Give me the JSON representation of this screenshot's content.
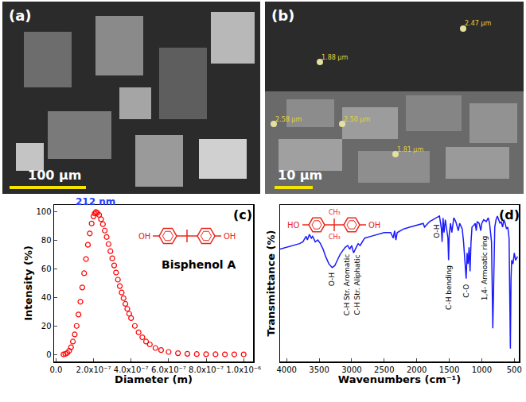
{
  "chart_data": [
    {
      "type": "image",
      "title": "(a)",
      "annotations": [
        {
          "text": "100 μm"
        }
      ]
    },
    {
      "type": "image",
      "title": "(b)",
      "annotations": [
        {
          "text": "10 μm"
        },
        {
          "text": "2.47 μm"
        },
        {
          "text": "1.88 μm"
        },
        {
          "text": "2.58 μm"
        },
        {
          "text": "2.50 μm"
        },
        {
          "text": "1.81 μm"
        }
      ]
    },
    {
      "type": "scatter",
      "title": "(c)",
      "x_label": "Diameter (m)",
      "y_label": "Intensity (%)",
      "x": [
        4e-08,
        5e-08,
        6e-08,
        7e-08,
        8e-08,
        9e-08,
        1e-07,
        1.1e-07,
        1.2e-07,
        1.3e-07,
        1.4e-07,
        1.5e-07,
        1.6e-07,
        1.7e-07,
        1.8e-07,
        1.9e-07,
        2e-07,
        2.06e-07,
        2.12e-07,
        2.2e-07,
        2.3e-07,
        2.4e-07,
        2.5e-07,
        2.6e-07,
        2.7e-07,
        2.8e-07,
        2.9e-07,
        3e-07,
        3.1e-07,
        3.2e-07,
        3.3e-07,
        3.4e-07,
        3.5e-07,
        3.6e-07,
        3.7e-07,
        3.8e-07,
        3.9e-07,
        4e-07,
        4.2e-07,
        4.4e-07,
        4.6e-07,
        4.8e-07,
        5e-07,
        5.3e-07,
        5.6e-07,
        6e-07,
        6.5e-07,
        7e-07,
        7.5e-07,
        8e-07,
        8.5e-07,
        9e-07,
        9.5e-07,
        1e-06
      ],
      "series": [
        {
          "color": "#ff0000",
          "marker": "circle-open",
          "values": [
            0,
            0.3,
            1,
            2.5,
            5,
            9,
            14,
            20,
            28,
            37,
            47,
            57,
            67,
            77,
            85,
            92,
            97,
            99,
            100,
            99.5,
            98,
            95,
            91.5,
            87,
            82.5,
            77.5,
            72.5,
            67.5,
            62.5,
            57.5,
            52.5,
            48,
            43.5,
            39.5,
            35.5,
            32,
            28.5,
            25.5,
            20,
            15.5,
            12,
            9,
            7,
            4.5,
            3,
            1.7,
            0.8,
            0.4,
            0.2,
            0.1,
            0.05,
            0,
            0,
            0
          ]
        }
      ],
      "xlim": [
        -1e-08,
        1.05e-06
      ],
      "xticks": [
        {
          "value": 0,
          "label": "0.0"
        },
        {
          "value": 2e-07,
          "label": "2.0x10⁻⁷"
        },
        {
          "value": 4e-07,
          "label": "4.0x10⁻⁷"
        },
        {
          "value": 6e-07,
          "label": "6.0x10⁻⁷"
        },
        {
          "value": 8e-07,
          "label": "8.0x10⁻⁷"
        },
        {
          "value": 1e-06,
          "label": "1.0x10⁻⁶"
        }
      ],
      "ylim": [
        -5,
        105
      ],
      "yticks": [
        0,
        20,
        40,
        60,
        80,
        100
      ],
      "grid": false,
      "annotations": [
        {
          "text": "212 nm",
          "x": 2.12e-07,
          "y": 100,
          "color": "#1f3fff"
        },
        {
          "text": "Bisphenol A"
        }
      ],
      "structure": {
        "left": "OH",
        "right": "OH"
      }
    },
    {
      "type": "line",
      "title": "(d)",
      "x_label": "Wavenumbers (cm⁻¹)",
      "y_label": "Transmittance (%)",
      "x": [
        4100,
        4000,
        3900,
        3800,
        3750,
        3700,
        3680,
        3650,
        3620,
        3600,
        3560,
        3520,
        3480,
        3440,
        3400,
        3350,
        3300,
        3260,
        3220,
        3180,
        3140,
        3100,
        3060,
        3030,
        3000,
        2970,
        2930,
        2900,
        2870,
        2800,
        2700,
        2600,
        2500,
        2400,
        2360,
        2340,
        2320,
        2300,
        2200,
        2100,
        2000,
        1900,
        1880,
        1800,
        1700,
        1650,
        1620,
        1610,
        1600,
        1595,
        1580,
        1560,
        1520,
        1510,
        1500,
        1480,
        1460,
        1450,
        1430,
        1400,
        1380,
        1360,
        1340,
        1300,
        1280,
        1260,
        1240,
        1225,
        1210,
        1195,
        1180,
        1165,
        1150,
        1120,
        1100,
        1085,
        1070,
        1040,
        1015,
        1000,
        970,
        930,
        900,
        880,
        850,
        830,
        815,
        800,
        780,
        760,
        740,
        720,
        700,
        680,
        660,
        640,
        620,
        600,
        580,
        560,
        550,
        540,
        520,
        500,
        480,
        450
      ],
      "series": [
        {
          "color": "#1a1aff",
          "line_style": "solid",
          "values": [
            76,
            77,
            78,
            79,
            80,
            83,
            81,
            84,
            82,
            83,
            80,
            81,
            79,
            76,
            72,
            68,
            66,
            67,
            70,
            73,
            75,
            77,
            78,
            76,
            78,
            74,
            77,
            79,
            78,
            82,
            83,
            84,
            85,
            85,
            82,
            86,
            81,
            85,
            87,
            88,
            89,
            90,
            88,
            91,
            93,
            94,
            87,
            80,
            88,
            93,
            85,
            92,
            82,
            70,
            84,
            90,
            85,
            88,
            93,
            91,
            88,
            86,
            90,
            87,
            80,
            70,
            60,
            74,
            68,
            77,
            64,
            80,
            88,
            89,
            90,
            86,
            91,
            90,
            86,
            90,
            92,
            91,
            93,
            90,
            80,
            33,
            70,
            88,
            92,
            94,
            92,
            90,
            91,
            88,
            92,
            90,
            87,
            88,
            82,
            22,
            60,
            70,
            68,
            74,
            70,
            72
          ]
        }
      ],
      "xlim": [
        4100,
        430
      ],
      "xticks": [
        4000,
        3500,
        3000,
        2500,
        2000,
        1500,
        1000,
        500
      ],
      "ylim": [
        15,
        100
      ],
      "yticks": [],
      "tick_labels": "x",
      "grid": false,
      "annotations": [
        {
          "text": "O-H",
          "x": 3300,
          "y": 64
        },
        {
          "text": "C-H Str. Aromatic",
          "x": 3080,
          "y": 74
        },
        {
          "text": "C-H Str. Aliphatic",
          "x": 2910,
          "y": 74
        },
        {
          "text": "O-H",
          "x": 1700,
          "y": 90
        },
        {
          "text": "C-H bending",
          "x": 1510,
          "y": 68
        },
        {
          "text": "C-O",
          "x": 1240,
          "y": 58
        },
        {
          "text": "1,4- Armoatic ring",
          "x": 960,
          "y": 84
        }
      ],
      "structure": {
        "left": "HO",
        "right": "OH",
        "top": "CH₃",
        "bottom": "CH₃"
      }
    }
  ]
}
